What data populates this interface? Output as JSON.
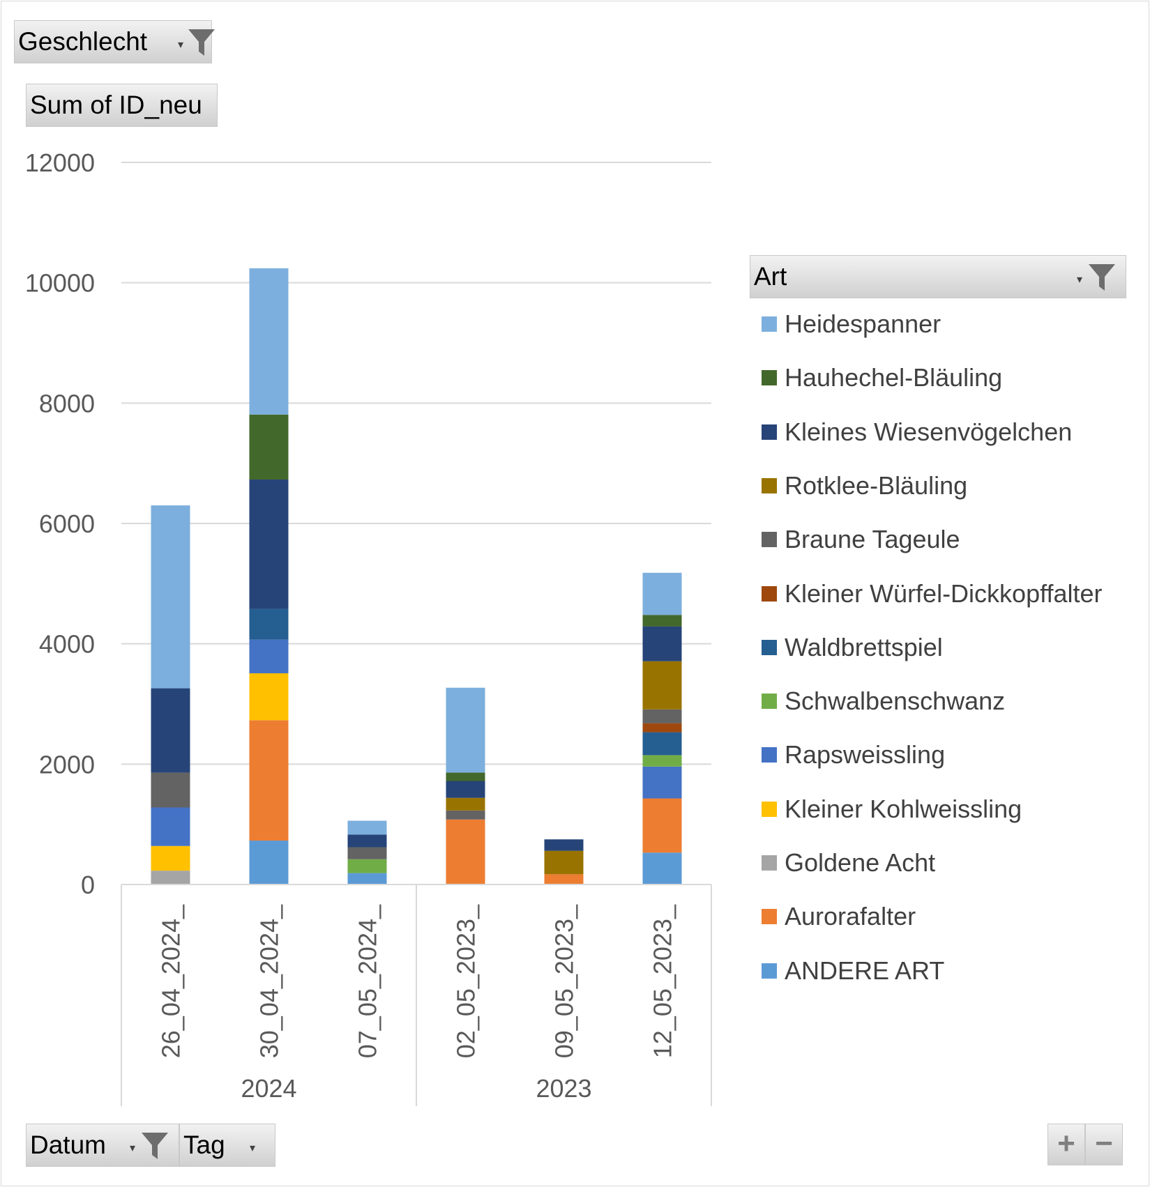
{
  "filters": {
    "geschlecht_label": "Geschlecht",
    "value_field_label": "Sum of ID_neu",
    "art_label": "Art",
    "datum_label": "Datum",
    "tag_label": "Tag",
    "zoom_in": "+",
    "zoom_out": "−"
  },
  "chart_data": {
    "type": "bar",
    "stacked": true,
    "ylim": [
      0,
      12000
    ],
    "yticks": [
      0,
      2000,
      4000,
      6000,
      8000,
      10000,
      12000
    ],
    "grid": true,
    "legend_position": "right",
    "categories": [
      "26_04_2024_",
      "30_04_2024_",
      "07_05_2024_",
      "02_05_2023_",
      "09_05_2023_",
      "12_05_2023_"
    ],
    "groups": [
      {
        "label": "2024",
        "categories": [
          "26_04_2024_",
          "30_04_2024_",
          "07_05_2024_"
        ]
      },
      {
        "label": "2023",
        "categories": [
          "02_05_2023_",
          "09_05_2023_",
          "12_05_2023_"
        ]
      }
    ],
    "series": [
      {
        "name": "ANDERE ART",
        "color": "#5b9bd5",
        "values": [
          0,
          730,
          190,
          0,
          0,
          530
        ]
      },
      {
        "name": "Aurorafalter",
        "color": "#ed7d31",
        "values": [
          0,
          2000,
          0,
          1080,
          170,
          900
        ]
      },
      {
        "name": "Goldene Acht",
        "color": "#a5a5a5",
        "values": [
          230,
          0,
          0,
          0,
          0,
          0
        ]
      },
      {
        "name": "Kleiner Kohlweissling",
        "color": "#ffc000",
        "values": [
          410,
          780,
          0,
          0,
          0,
          0
        ]
      },
      {
        "name": "Rapsweissling",
        "color": "#4472c4",
        "values": [
          640,
          560,
          0,
          0,
          0,
          530
        ]
      },
      {
        "name": "Schwalbenschwanz",
        "color": "#70ad47",
        "values": [
          0,
          0,
          230,
          0,
          0,
          190
        ]
      },
      {
        "name": "Waldbrettspiel",
        "color": "#255e91",
        "values": [
          0,
          510,
          0,
          0,
          0,
          380
        ]
      },
      {
        "name": "Kleiner Würfel-Dickkopffalter",
        "color": "#9e480e",
        "values": [
          0,
          0,
          0,
          0,
          0,
          150
        ]
      },
      {
        "name": "Braune Tageule",
        "color": "#636363",
        "values": [
          580,
          0,
          200,
          150,
          0,
          230
        ]
      },
      {
        "name": "Rotklee-Bläuling",
        "color": "#997300",
        "values": [
          0,
          0,
          0,
          210,
          390,
          800
        ]
      },
      {
        "name": "Kleines Wiesenvögelchen",
        "color": "#264478",
        "values": [
          1400,
          2150,
          210,
          280,
          190,
          580
        ]
      },
      {
        "name": "Hauhechel-Bläuling",
        "color": "#43682b",
        "values": [
          0,
          1080,
          0,
          140,
          0,
          190
        ]
      },
      {
        "name": "Heidespanner",
        "color": "#7cafdd",
        "values": [
          3040,
          2430,
          230,
          1410,
          0,
          700
        ]
      }
    ],
    "legend_order": [
      "Heidespanner",
      "Hauhechel-Bläuling",
      "Kleines Wiesenvögelchen",
      "Rotklee-Bläuling",
      "Braune Tageule",
      "Kleiner Würfel-Dickkopffalter",
      "Waldbrettspiel",
      "Schwalbenschwanz",
      "Rapsweissling",
      "Kleiner Kohlweissling",
      "Goldene Acht",
      "Aurorafalter",
      "ANDERE ART"
    ],
    "title": "",
    "xlabel": "",
    "ylabel": ""
  }
}
